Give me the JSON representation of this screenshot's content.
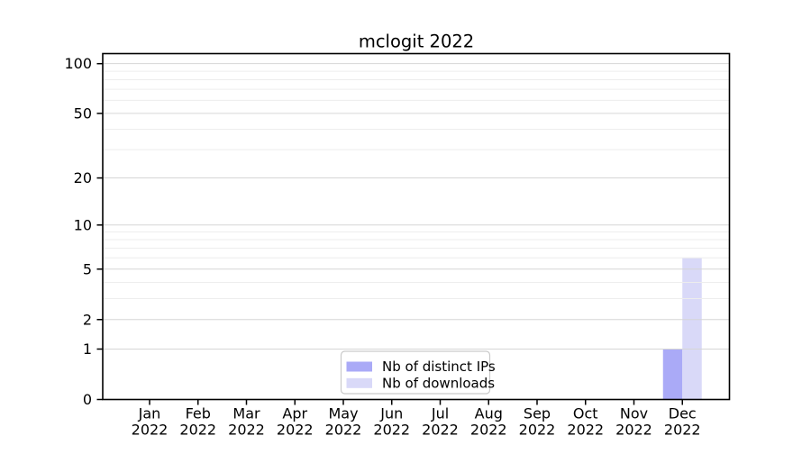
{
  "title": "mclogit 2022",
  "chart_data": {
    "type": "bar",
    "title": "mclogit 2022",
    "categories": [
      {
        "month": "Jan",
        "year": "2022"
      },
      {
        "month": "Feb",
        "year": "2022"
      },
      {
        "month": "Mar",
        "year": "2022"
      },
      {
        "month": "Apr",
        "year": "2022"
      },
      {
        "month": "May",
        "year": "2022"
      },
      {
        "month": "Jun",
        "year": "2022"
      },
      {
        "month": "Jul",
        "year": "2022"
      },
      {
        "month": "Aug",
        "year": "2022"
      },
      {
        "month": "Sep",
        "year": "2022"
      },
      {
        "month": "Oct",
        "year": "2022"
      },
      {
        "month": "Nov",
        "year": "2022"
      },
      {
        "month": "Dec",
        "year": "2022"
      }
    ],
    "series": [
      {
        "name": "Nb of distinct IPs",
        "color": "#aaaaf7",
        "values": [
          0,
          0,
          0,
          0,
          0,
          0,
          0,
          0,
          0,
          0,
          0,
          1
        ]
      },
      {
        "name": "Nb of downloads",
        "color": "#d9d9f8",
        "values": [
          0,
          0,
          0,
          0,
          0,
          0,
          0,
          0,
          0,
          0,
          0,
          6
        ]
      }
    ],
    "xlabel": "",
    "ylabel": "",
    "y_scale": "log1p",
    "y_ticks": [
      0,
      1,
      2,
      5,
      10,
      20,
      50,
      100
    ],
    "y_minor_ticks": [
      3,
      4,
      6,
      7,
      8,
      9,
      30,
      40,
      60,
      70,
      80,
      90
    ],
    "ylim": [
      0,
      115
    ],
    "grid": true,
    "legend_position": "lower center",
    "colors": {
      "background": "#ffffff",
      "spine": "#000000",
      "grid_major": "#d6d6d6",
      "grid_minor": "#ededed",
      "legend_border": "#c9c9c9",
      "legend_background": "#ffffff",
      "text": "#000000"
    }
  }
}
